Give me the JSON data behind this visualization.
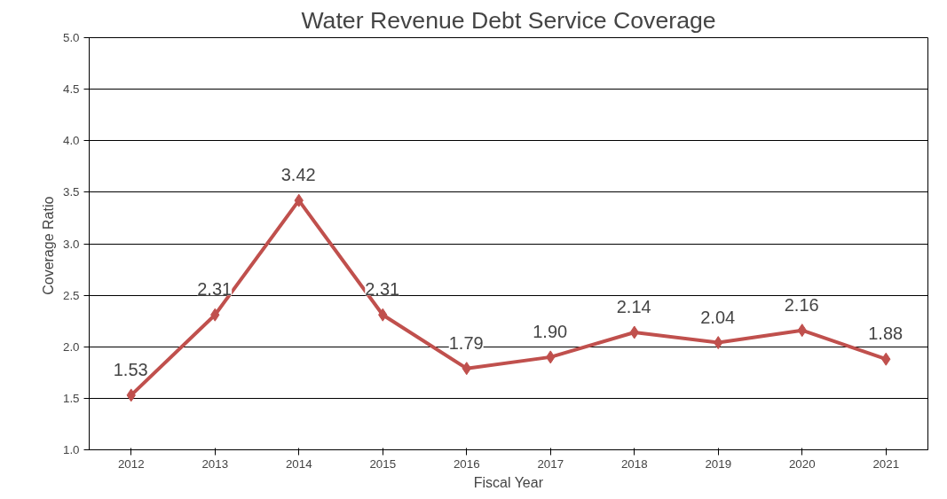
{
  "chart_data": {
    "type": "line",
    "title": "Water Revenue Debt Service Coverage",
    "xlabel": "Fiscal Year",
    "ylabel": "Coverage  Ratio",
    "categories": [
      "2012",
      "2013",
      "2014",
      "2015",
      "2016",
      "2017",
      "2018",
      "2019",
      "2020",
      "2021"
    ],
    "series": [
      {
        "color": "#c0504d",
        "values": [
          1.53,
          2.31,
          3.42,
          2.31,
          1.79,
          1.9,
          2.14,
          2.04,
          2.16,
          1.88
        ],
        "value_labels": [
          "1.53",
          "2.31",
          "3.42",
          "2.31",
          "1.79",
          "1.90",
          "2.14",
          "2.04",
          "2.16",
          "1.88"
        ]
      }
    ],
    "ylim": [
      1.0,
      5.0
    ],
    "yticks": [
      {
        "value": 1.0,
        "label": "1.0"
      },
      {
        "value": 1.5,
        "label": "1.5"
      },
      {
        "value": 2.0,
        "label": "2.0"
      },
      {
        "value": 2.5,
        "label": "2.5"
      },
      {
        "value": 3.0,
        "label": "3.0"
      },
      {
        "value": 3.5,
        "label": "3.5"
      },
      {
        "value": 4.0,
        "label": "4.0"
      },
      {
        "value": 4.5,
        "label": "4.5"
      },
      {
        "value": 5.0,
        "label": "5.0"
      }
    ],
    "grid": "y",
    "marker": "diamond",
    "line_style": "solid"
  }
}
